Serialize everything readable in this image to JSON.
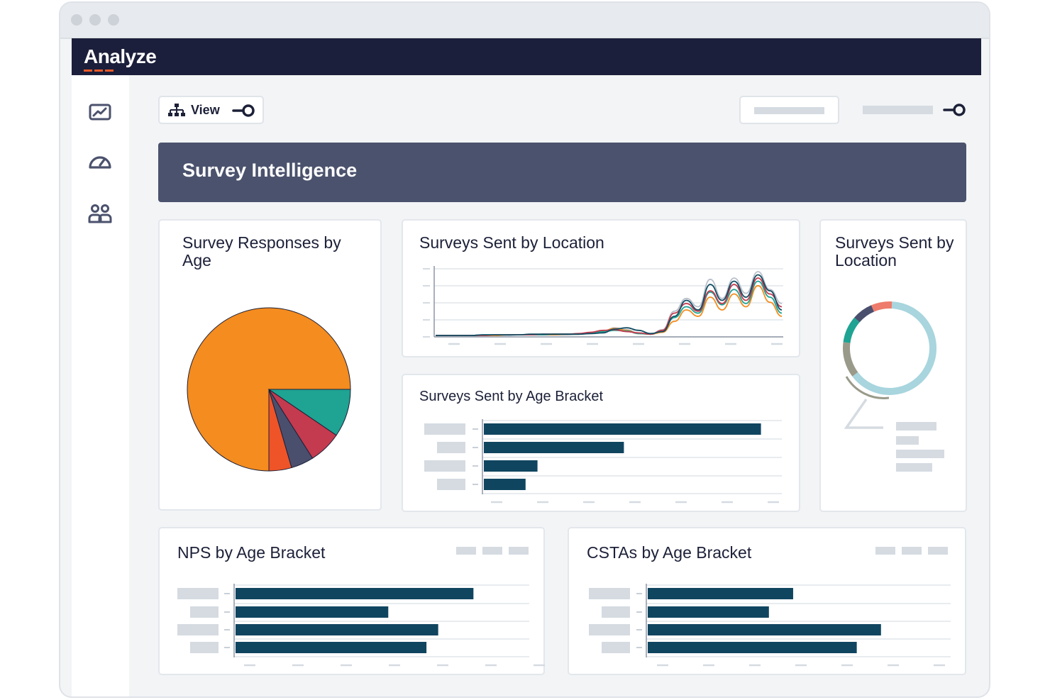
{
  "app": {
    "name": "Analyze"
  },
  "toolbar": {
    "view_label": "View"
  },
  "banner": {
    "title": "Survey Intelligence"
  },
  "sidebar": {
    "items": [
      "chart-icon",
      "gauge-icon",
      "users-icon"
    ]
  },
  "colors": {
    "navy": "#1b1f3b",
    "bar": "#104560",
    "orange": "#f48c1f",
    "teal": "#1fa393",
    "red": "#c43a4e",
    "slate": "#4b526d",
    "accent": "#f05a28"
  },
  "cards": {
    "pie_title": "Survey Responses by Age",
    "line_title": "Surveys Sent by Location",
    "donut_title": "Surveys Sent by Location",
    "agebar_title": "Surveys Sent by Age Bracket",
    "nps_title": "NPS by Age Bracket",
    "csta_title": "CSTAs by Age Bracket"
  },
  "chart_data": [
    {
      "id": "pie",
      "type": "pie",
      "title": "Survey Responses by Age",
      "slices": [
        {
          "value": 75,
          "color": "#f48c1f"
        },
        {
          "value": 4.5,
          "color": "#ee5428"
        },
        {
          "value": 4.5,
          "color": "#4a4f6e"
        },
        {
          "value": 6.5,
          "color": "#c43a4e"
        },
        {
          "value": 9.5,
          "color": "#1fa393"
        }
      ]
    },
    {
      "id": "line",
      "type": "line",
      "title": "Surveys Sent by Location",
      "ylim": [
        0,
        100
      ],
      "series": [
        {
          "color": "#134d63",
          "values": [
            0,
            0,
            0,
            0,
            1,
            1,
            1,
            1,
            2,
            2,
            2,
            2,
            2,
            3,
            4,
            10,
            12,
            8,
            3,
            6,
            30,
            55,
            40,
            80,
            55,
            85,
            60,
            95,
            70,
            40
          ]
        },
        {
          "color": "#c43a4e",
          "values": [
            0,
            0,
            0,
            0,
            0,
            1,
            1,
            1,
            1,
            2,
            2,
            2,
            3,
            5,
            8,
            9,
            6,
            4,
            2,
            8,
            35,
            50,
            38,
            70,
            50,
            80,
            55,
            90,
            65,
            45
          ]
        },
        {
          "color": "#1fa393",
          "values": [
            0,
            0,
            0,
            0,
            1,
            1,
            1,
            1,
            1,
            1,
            2,
            2,
            2,
            4,
            6,
            8,
            7,
            3,
            2,
            7,
            28,
            45,
            35,
            68,
            48,
            72,
            50,
            85,
            60,
            35
          ]
        },
        {
          "color": "#f48c1f",
          "values": [
            0,
            0,
            0,
            0,
            0,
            0,
            1,
            1,
            1,
            1,
            1,
            2,
            2,
            4,
            7,
            11,
            8,
            3,
            2,
            5,
            22,
            40,
            30,
            60,
            40,
            65,
            45,
            78,
            52,
            30
          ]
        },
        {
          "color": "#b9bfca",
          "values": [
            0,
            0,
            0,
            0,
            0,
            0,
            0,
            1,
            1,
            1,
            1,
            1,
            2,
            3,
            6,
            12,
            9,
            4,
            2,
            9,
            38,
            58,
            45,
            88,
            58,
            90,
            66,
            100,
            72,
            50
          ]
        }
      ]
    },
    {
      "id": "donut",
      "type": "pie",
      "title": "Surveys Sent by Location",
      "slices": [
        {
          "value": 62,
          "color": "#a8d5de"
        },
        {
          "value": 12,
          "color": "#9a9a8a"
        },
        {
          "value": 9,
          "color": "#1fa393"
        },
        {
          "value": 7,
          "color": "#4b4f6e"
        },
        {
          "value": 7,
          "color": "#ee7b6b"
        }
      ]
    },
    {
      "id": "agebar",
      "type": "bar",
      "title": "Surveys Sent by Age Bracket",
      "xlim": [
        0,
        100
      ],
      "values": [
        93,
        47,
        18,
        14
      ]
    },
    {
      "id": "nps",
      "type": "bar",
      "title": "NPS by Age Bracket",
      "xlim": [
        0,
        100
      ],
      "values": [
        81,
        52,
        69,
        65
      ]
    },
    {
      "id": "csta",
      "type": "bar",
      "title": "CSTAs by Age Bracket",
      "xlim": [
        0,
        100
      ],
      "values": [
        48,
        40,
        77,
        69
      ]
    }
  ]
}
